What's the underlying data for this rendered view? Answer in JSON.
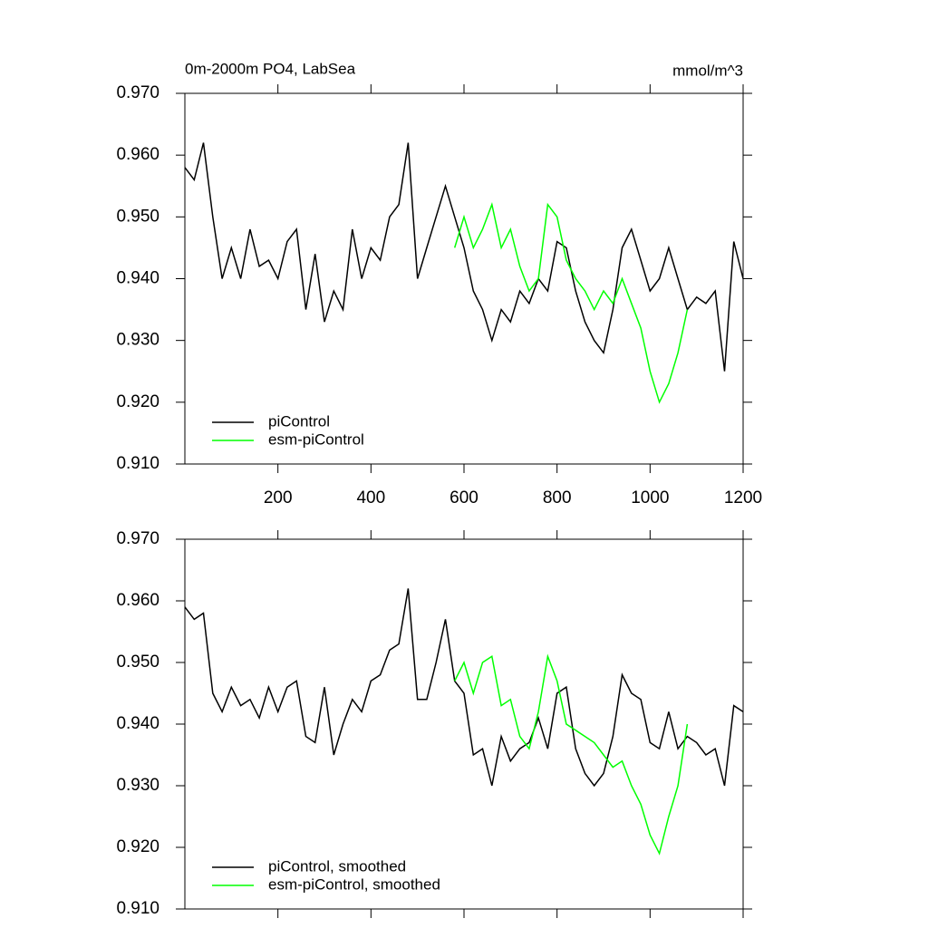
{
  "chart_data": [
    {
      "type": "line",
      "title": "0m-2000m PO4, LabSea",
      "units": "mmol/m^3",
      "xlim": [
        0,
        1200
      ],
      "xticks": [
        200,
        400,
        600,
        800,
        1000,
        1200
      ],
      "ylim": [
        0.91,
        0.97
      ],
      "yticks": [
        {
          "value": 0.91,
          "label": "0.910"
        },
        {
          "value": 0.92,
          "label": "0.920"
        },
        {
          "value": 0.93,
          "label": "0.930"
        },
        {
          "value": 0.94,
          "label": "0.940"
        },
        {
          "value": 0.95,
          "label": "0.950"
        },
        {
          "value": 0.96,
          "label": "0.960"
        },
        {
          "value": 0.97,
          "label": "0.970"
        }
      ],
      "legend": "lower left",
      "series": [
        {
          "name": "piControl",
          "color": "#000000",
          "x": [
            0,
            20,
            40,
            60,
            80,
            100,
            120,
            140,
            160,
            180,
            200,
            220,
            240,
            260,
            280,
            300,
            320,
            340,
            360,
            380,
            400,
            420,
            440,
            460,
            480,
            500,
            520,
            540,
            560,
            580,
            600,
            620,
            640,
            660,
            680,
            700,
            720,
            740,
            760,
            780,
            800,
            820,
            840,
            860,
            880,
            900,
            920,
            940,
            960,
            980,
            1000,
            1020,
            1040,
            1060,
            1080,
            1100,
            1120,
            1140,
            1160,
            1180,
            1200
          ],
          "values": [
            0.958,
            0.956,
            0.962,
            0.95,
            0.94,
            0.945,
            0.94,
            0.948,
            0.942,
            0.943,
            0.94,
            0.946,
            0.948,
            0.935,
            0.944,
            0.933,
            0.938,
            0.935,
            0.948,
            0.94,
            0.945,
            0.943,
            0.95,
            0.952,
            0.962,
            0.94,
            0.945,
            0.95,
            0.955,
            0.95,
            0.945,
            0.938,
            0.935,
            0.93,
            0.935,
            0.933,
            0.938,
            0.936,
            0.94,
            0.938,
            0.946,
            0.945,
            0.938,
            0.933,
            0.93,
            0.928,
            0.935,
            0.945,
            0.948,
            0.943,
            0.938,
            0.94,
            0.945,
            0.94,
            0.935,
            0.937,
            0.936,
            0.938,
            0.925,
            0.946,
            0.94
          ]
        },
        {
          "name": "esm-piControl",
          "color": "#00ff00",
          "x": [
            580,
            600,
            620,
            640,
            660,
            680,
            700,
            720,
            740,
            760,
            780,
            800,
            820,
            840,
            860,
            880,
            900,
            920,
            940,
            960,
            980,
            1000,
            1020,
            1040,
            1060,
            1080
          ],
          "values": [
            0.945,
            0.95,
            0.945,
            0.948,
            0.952,
            0.945,
            0.948,
            0.942,
            0.938,
            0.94,
            0.952,
            0.95,
            0.943,
            0.94,
            0.938,
            0.935,
            0.938,
            0.936,
            0.94,
            0.936,
            0.932,
            0.925,
            0.92,
            0.923,
            0.928,
            0.935
          ]
        }
      ]
    },
    {
      "type": "line",
      "xlim": [
        0,
        1200
      ],
      "ylim": [
        0.91,
        0.97
      ],
      "yticks": [
        {
          "value": 0.91,
          "label": "0.910"
        },
        {
          "value": 0.92,
          "label": "0.920"
        },
        {
          "value": 0.93,
          "label": "0.930"
        },
        {
          "value": 0.94,
          "label": "0.940"
        },
        {
          "value": 0.95,
          "label": "0.950"
        },
        {
          "value": 0.96,
          "label": "0.960"
        },
        {
          "value": 0.97,
          "label": "0.970"
        }
      ],
      "legend": "lower left",
      "series": [
        {
          "name": "piControl, smoothed",
          "color": "#000000",
          "x": [
            0,
            20,
            40,
            60,
            80,
            100,
            120,
            140,
            160,
            180,
            200,
            220,
            240,
            260,
            280,
            300,
            320,
            340,
            360,
            380,
            400,
            420,
            440,
            460,
            480,
            500,
            520,
            540,
            560,
            580,
            600,
            620,
            640,
            660,
            680,
            700,
            720,
            740,
            760,
            780,
            800,
            820,
            840,
            860,
            880,
            900,
            920,
            940,
            960,
            980,
            1000,
            1020,
            1040,
            1060,
            1080,
            1100,
            1120,
            1140,
            1160,
            1180,
            1200
          ],
          "values": [
            0.959,
            0.957,
            0.958,
            0.945,
            0.942,
            0.946,
            0.943,
            0.944,
            0.941,
            0.946,
            0.942,
            0.946,
            0.947,
            0.938,
            0.937,
            0.946,
            0.935,
            0.94,
            0.944,
            0.942,
            0.947,
            0.948,
            0.952,
            0.953,
            0.962,
            0.944,
            0.944,
            0.95,
            0.957,
            0.947,
            0.945,
            0.935,
            0.936,
            0.93,
            0.938,
            0.934,
            0.936,
            0.937,
            0.941,
            0.936,
            0.945,
            0.946,
            0.936,
            0.932,
            0.93,
            0.932,
            0.938,
            0.948,
            0.945,
            0.944,
            0.937,
            0.936,
            0.942,
            0.936,
            0.938,
            0.937,
            0.935,
            0.936,
            0.93,
            0.943,
            0.942
          ]
        },
        {
          "name": "esm-piControl, smoothed",
          "color": "#00ff00",
          "x": [
            580,
            600,
            620,
            640,
            660,
            680,
            700,
            720,
            740,
            760,
            780,
            800,
            820,
            840,
            860,
            880,
            900,
            920,
            940,
            960,
            980,
            1000,
            1020,
            1040,
            1060,
            1080
          ],
          "values": [
            0.947,
            0.95,
            0.945,
            0.95,
            0.951,
            0.943,
            0.944,
            0.938,
            0.936,
            0.942,
            0.951,
            0.947,
            0.94,
            0.939,
            0.938,
            0.937,
            0.935,
            0.933,
            0.934,
            0.93,
            0.927,
            0.922,
            0.919,
            0.925,
            0.93,
            0.94
          ]
        }
      ]
    }
  ]
}
